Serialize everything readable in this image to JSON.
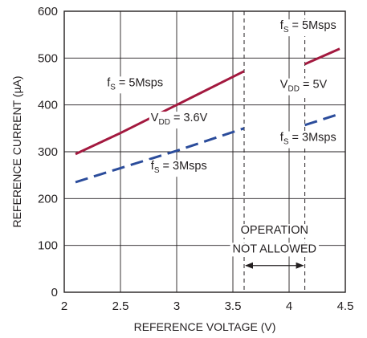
{
  "chart_data": {
    "type": "line",
    "title": "",
    "xlabel": "REFERENCE VOLTAGE (V)",
    "ylabel": "REFERENCE CURRENT (µA)",
    "xlim": [
      2,
      4.5
    ],
    "ylim": [
      0,
      600
    ],
    "x_ticks": [
      "2",
      "2.5",
      "3",
      "3.5",
      "4",
      "4.5"
    ],
    "y_ticks": [
      "0",
      "100",
      "200",
      "300",
      "400",
      "500",
      "600"
    ],
    "grid": true,
    "series": [
      {
        "color": "#a3193f",
        "dashed": false,
        "x": [
          2.1,
          2.5,
          3.0,
          3.6
        ],
        "y": [
          295,
          340,
          400,
          472
        ]
      },
      {
        "color": "#2b4c9b",
        "dashed": true,
        "x": [
          2.1,
          2.5,
          3.0,
          3.6
        ],
        "y": [
          235,
          265,
          302,
          350
        ]
      },
      {
        "color": "#a3193f",
        "dashed": false,
        "x": [
          4.14,
          4.45
        ],
        "y": [
          487,
          520
        ]
      },
      {
        "color": "#2b4c9b",
        "dashed": true,
        "x": [
          4.14,
          4.45
        ],
        "y": [
          357,
          381
        ]
      }
    ],
    "annotations": [
      {
        "id": "fs-5m-left",
        "main": "f",
        "sub": "S",
        "rest": " = 5Msps",
        "x": 2.38,
        "y": 440
      },
      {
        "id": "vdd-36",
        "main": "V",
        "sub": "DD",
        "rest": " = 3.6V",
        "x": 2.77,
        "y": 365
      },
      {
        "id": "fs-3m-left",
        "main": "f",
        "sub": "S",
        "rest": " = 3Msps",
        "x": 2.77,
        "y": 262
      },
      {
        "id": "fs-5m-right",
        "main": "f",
        "sub": "S",
        "rest": " = 5Msps",
        "x": 3.92,
        "y": 562
      },
      {
        "id": "vdd-5",
        "main": "V",
        "sub": "DD",
        "rest": " = 5V",
        "x": 3.92,
        "y": 436
      },
      {
        "id": "fs-3m-right",
        "main": "f",
        "sub": "S",
        "rest": " = 3Msps",
        "x": 3.92,
        "y": 323
      }
    ],
    "dashed_vertical_lines_x": [
      3.6,
      4.14
    ],
    "region_label": [
      "OPERATION",
      "NOT ALLOWED"
    ],
    "region_label_pos": {
      "x": 3.87,
      "y1": 125,
      "y2": 85
    },
    "region_arrow": {
      "x1": 3.6,
      "x2": 4.14,
      "y": 57
    }
  }
}
